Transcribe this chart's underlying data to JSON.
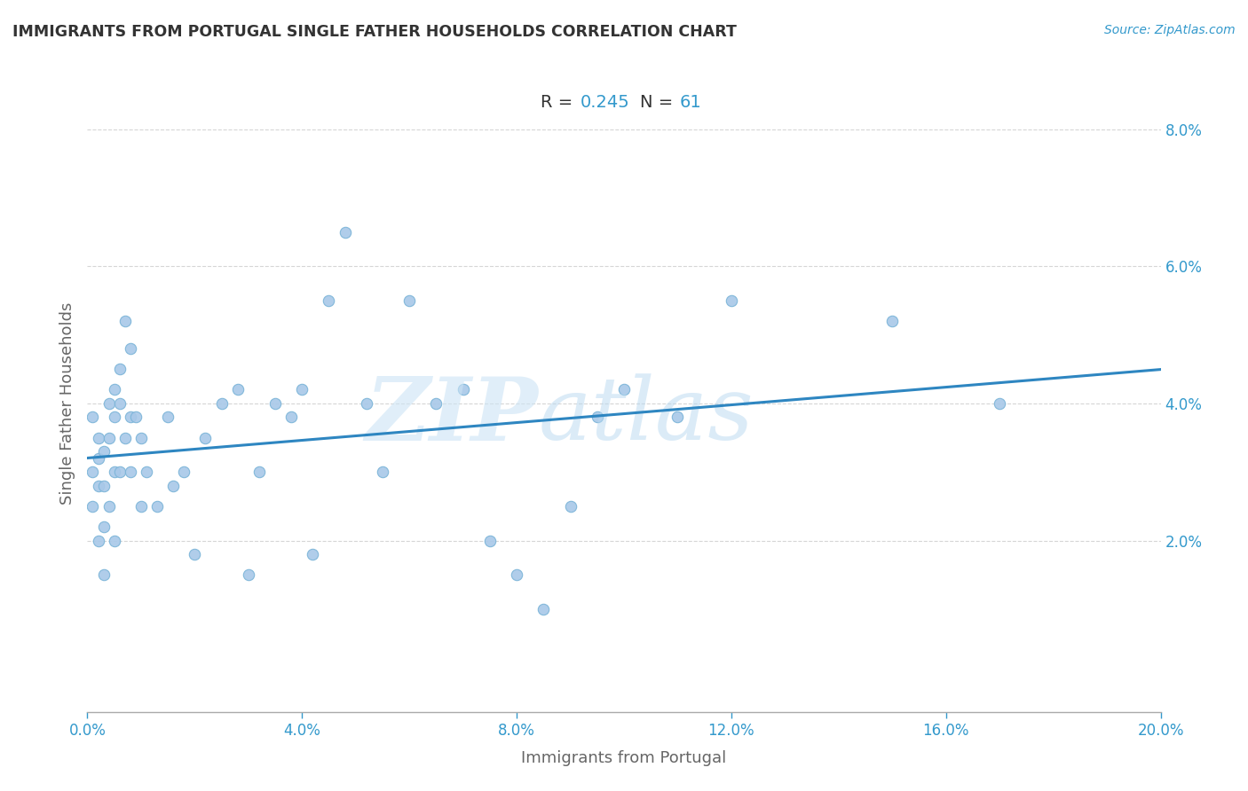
{
  "title": "IMMIGRANTS FROM PORTUGAL SINGLE FATHER HOUSEHOLDS CORRELATION CHART",
  "source": "Source: ZipAtlas.com",
  "xlabel": "Immigrants from Portugal",
  "ylabel": "Single Father Households",
  "R": 0.245,
  "N": 61,
  "xlim": [
    0.0,
    0.2
  ],
  "ylim": [
    -0.005,
    0.085
  ],
  "xticks": [
    0.0,
    0.04,
    0.08,
    0.12,
    0.16,
    0.2
  ],
  "yticks": [
    0.02,
    0.04,
    0.06,
    0.08
  ],
  "xtick_labels": [
    "0.0%",
    "4.0%",
    "8.0%",
    "12.0%",
    "16.0%",
    "20.0%"
  ],
  "ytick_labels": [
    "2.0%",
    "4.0%",
    "6.0%",
    "8.0%"
  ],
  "scatter_color": "#a8c8e8",
  "line_color": "#2e86c1",
  "title_color": "#333333",
  "axis_label_color": "#666666",
  "scatter_x": [
    0.001,
    0.001,
    0.001,
    0.002,
    0.002,
    0.002,
    0.002,
    0.003,
    0.003,
    0.003,
    0.003,
    0.004,
    0.004,
    0.004,
    0.005,
    0.005,
    0.005,
    0.005,
    0.006,
    0.006,
    0.006,
    0.007,
    0.007,
    0.008,
    0.008,
    0.008,
    0.009,
    0.01,
    0.01,
    0.011,
    0.013,
    0.015,
    0.016,
    0.018,
    0.02,
    0.022,
    0.025,
    0.028,
    0.03,
    0.032,
    0.035,
    0.038,
    0.04,
    0.042,
    0.045,
    0.048,
    0.052,
    0.055,
    0.06,
    0.065,
    0.07,
    0.075,
    0.08,
    0.085,
    0.09,
    0.095,
    0.1,
    0.11,
    0.12,
    0.15,
    0.17
  ],
  "scatter_y": [
    0.038,
    0.03,
    0.025,
    0.035,
    0.032,
    0.028,
    0.02,
    0.033,
    0.028,
    0.022,
    0.015,
    0.04,
    0.035,
    0.025,
    0.042,
    0.038,
    0.03,
    0.02,
    0.045,
    0.04,
    0.03,
    0.052,
    0.035,
    0.048,
    0.038,
    0.03,
    0.038,
    0.035,
    0.025,
    0.03,
    0.025,
    0.038,
    0.028,
    0.03,
    0.018,
    0.035,
    0.04,
    0.042,
    0.015,
    0.03,
    0.04,
    0.038,
    0.042,
    0.018,
    0.055,
    0.065,
    0.04,
    0.03,
    0.055,
    0.04,
    0.042,
    0.02,
    0.015,
    0.01,
    0.025,
    0.038,
    0.042,
    0.038,
    0.055,
    0.052,
    0.04
  ]
}
